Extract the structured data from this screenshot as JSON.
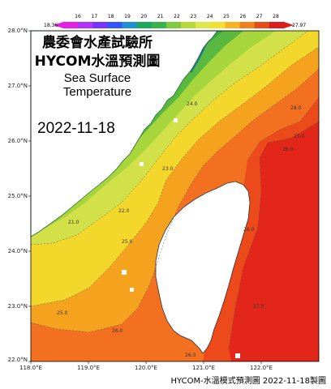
{
  "colorbar": {
    "min_label": "18.36",
    "max_label": "27.97",
    "ticks": [
      "16",
      "17",
      "18",
      "19",
      "20",
      "21",
      "22",
      "23",
      "24",
      "25",
      "26",
      "27",
      "28"
    ],
    "colors": [
      "#e51fe5",
      "#b233ff",
      "#7a33ff",
      "#3355ff",
      "#1e8fd6",
      "#1fa85c",
      "#36b34a",
      "#7fca3d",
      "#b6dc3b",
      "#dde84c",
      "#f3e132",
      "#f7b322",
      "#f07f1e",
      "#ea4c17",
      "#dd1c1c"
    ]
  },
  "title": {
    "line1": "農委會水產試驗所",
    "line2": "HYCOM水溫預測圖",
    "line3": "Sea Surface",
    "line4": "Temperature"
  },
  "date": "2022-11-18",
  "footer": "HYCOM-水溫模式預測圖 2022-11-18製圖",
  "axes": {
    "lat_labels": [
      "28.0°N",
      "27.0°N",
      "26.0°N",
      "25.0°N",
      "24.0°N",
      "23.0°N",
      "22.0°N"
    ],
    "lon_labels": [
      "118.0°E",
      "119.0°E",
      "120.0°E",
      "121.0°E",
      "122.0°E"
    ]
  },
  "contour_labels": [
    "28.0",
    "26.0",
    "25.0",
    "24.0",
    "23.0",
    "22.0",
    "21.0",
    "25.0",
    "26.0",
    "25.0",
    "24.0",
    "23.0",
    "22.0",
    "21.0",
    "19.0",
    "26.0",
    "27.0",
    "26.0"
  ],
  "colors": {
    "land": "#ffffff",
    "deep_red": "#e3261a",
    "red": "#ec4a1a",
    "orange_red": "#f27020",
    "orange": "#f5a21f",
    "yellow": "#f3d82b",
    "yellow_green": "#d2e049",
    "light_green": "#a6d63c",
    "green": "#58b840",
    "mid_green": "#36a54a",
    "dark_green": "#1a8e52",
    "teal": "#1e7a8c",
    "blue": "#2d55c8"
  }
}
